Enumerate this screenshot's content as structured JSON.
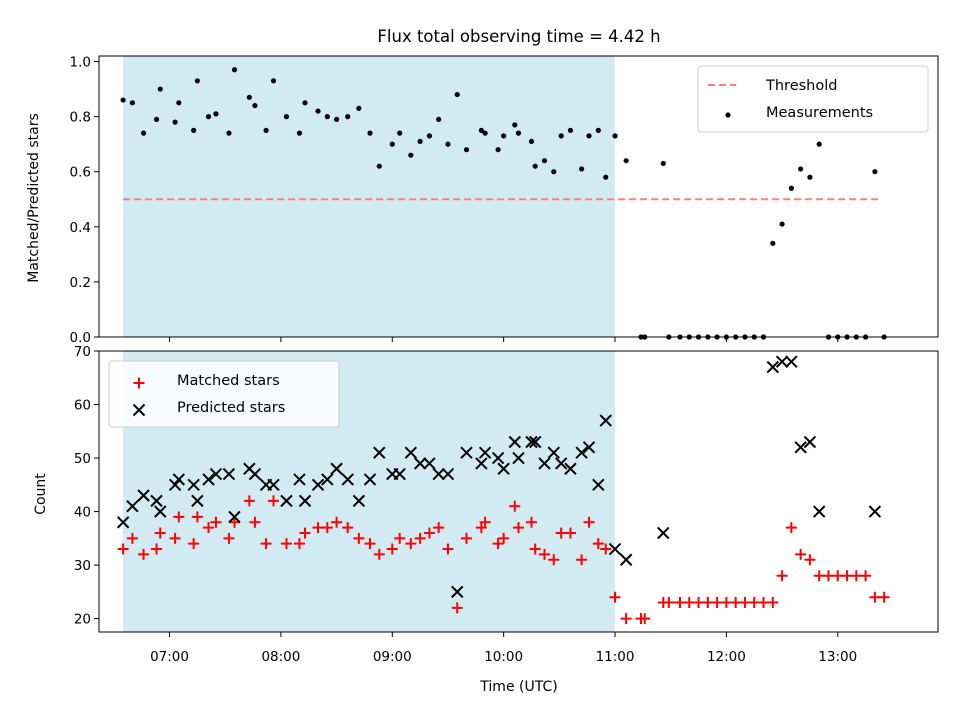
{
  "chart_data": [
    {
      "type": "scatter",
      "title": "Flux total observing time = 4.42 h",
      "xlabel": "",
      "ylabel": "Matched/Predicted stars",
      "xlim": [
        "06:22",
        "13:54"
      ],
      "ylim": [
        0.0,
        1.02
      ],
      "yticks": [
        "0.0",
        "0.2",
        "0.4",
        "0.6",
        "0.8",
        "1.0"
      ],
      "xticks": [
        "07:00",
        "08:00",
        "09:00",
        "10:00",
        "11:00",
        "12:00",
        "13:00"
      ],
      "x_tick_labels_visible": false,
      "shaded_region": {
        "start": "06:35",
        "end": "11:00",
        "color": "#add8e6"
      },
      "legend": {
        "placement": "upper right",
        "entries": [
          "Threshold",
          "Measurements"
        ]
      },
      "series": [
        {
          "name": "Threshold",
          "kind": "dashed-line",
          "color": "#ff7f7f",
          "points": [
            [
              "06:35",
              0.5
            ],
            [
              "13:22",
              0.5
            ]
          ]
        },
        {
          "name": "Measurements",
          "kind": "dot",
          "color": "#000000",
          "points": [
            [
              "06:35",
              0.86
            ],
            [
              "06:40",
              0.85
            ],
            [
              "06:46",
              0.74
            ],
            [
              "06:53",
              0.79
            ],
            [
              "06:55",
              0.9
            ],
            [
              "07:03",
              0.78
            ],
            [
              "07:05",
              0.85
            ],
            [
              "07:13",
              0.75
            ],
            [
              "07:15",
              0.93
            ],
            [
              "07:21",
              0.8
            ],
            [
              "07:25",
              0.81
            ],
            [
              "07:32",
              0.74
            ],
            [
              "07:35",
              0.97
            ],
            [
              "07:43",
              0.87
            ],
            [
              "07:46",
              0.84
            ],
            [
              "07:52",
              0.75
            ],
            [
              "07:56",
              0.93
            ],
            [
              "08:03",
              0.8
            ],
            [
              "08:10",
              0.74
            ],
            [
              "08:13",
              0.85
            ],
            [
              "08:20",
              0.82
            ],
            [
              "08:25",
              0.8
            ],
            [
              "08:30",
              0.79
            ],
            [
              "08:36",
              0.8
            ],
            [
              "08:42",
              0.83
            ],
            [
              "08:48",
              0.74
            ],
            [
              "08:53",
              0.62
            ],
            [
              "09:00",
              0.7
            ],
            [
              "09:04",
              0.74
            ],
            [
              "09:10",
              0.66
            ],
            [
              "09:15",
              0.71
            ],
            [
              "09:20",
              0.73
            ],
            [
              "09:25",
              0.79
            ],
            [
              "09:30",
              0.7
            ],
            [
              "09:35",
              0.88
            ],
            [
              "09:40",
              0.68
            ],
            [
              "09:48",
              0.75
            ],
            [
              "09:50",
              0.74
            ],
            [
              "09:57",
              0.68
            ],
            [
              "10:00",
              0.73
            ],
            [
              "10:06",
              0.77
            ],
            [
              "10:08",
              0.74
            ],
            [
              "10:15",
              0.71
            ],
            [
              "10:17",
              0.62
            ],
            [
              "10:22",
              0.64
            ],
            [
              "10:27",
              0.6
            ],
            [
              "10:31",
              0.73
            ],
            [
              "10:36",
              0.75
            ],
            [
              "10:42",
              0.61
            ],
            [
              "10:46",
              0.73
            ],
            [
              "10:51",
              0.75
            ],
            [
              "10:55",
              0.58
            ],
            [
              "11:00",
              0.73
            ],
            [
              "11:06",
              0.64
            ],
            [
              "11:14",
              0.0
            ],
            [
              "11:16",
              0.0
            ],
            [
              "11:26",
              0.63
            ],
            [
              "11:29",
              0.0
            ],
            [
              "11:35",
              0.0
            ],
            [
              "11:40",
              0.0
            ],
            [
              "11:45",
              0.0
            ],
            [
              "11:50",
              0.0
            ],
            [
              "11:55",
              0.0
            ],
            [
              "12:00",
              0.0
            ],
            [
              "12:05",
              0.0
            ],
            [
              "12:10",
              0.0
            ],
            [
              "12:15",
              0.0
            ],
            [
              "12:20",
              0.0
            ],
            [
              "12:25",
              0.34
            ],
            [
              "12:30",
              0.41
            ],
            [
              "12:35",
              0.54
            ],
            [
              "12:40",
              0.61
            ],
            [
              "12:45",
              0.58
            ],
            [
              "12:50",
              0.7
            ],
            [
              "12:55",
              0.0
            ],
            [
              "13:00",
              0.0
            ],
            [
              "13:05",
              0.0
            ],
            [
              "13:10",
              0.0
            ],
            [
              "13:15",
              0.0
            ],
            [
              "13:20",
              0.6
            ],
            [
              "13:25",
              0.0
            ]
          ]
        }
      ]
    },
    {
      "type": "scatter",
      "title": "",
      "xlabel": "Time (UTC)",
      "ylabel": "Count",
      "xlim": [
        "06:22",
        "13:54"
      ],
      "ylim": [
        17.5,
        70
      ],
      "yticks": [
        "20",
        "30",
        "40",
        "50",
        "60",
        "70"
      ],
      "xticks": [
        "07:00",
        "08:00",
        "09:00",
        "10:00",
        "11:00",
        "12:00",
        "13:00"
      ],
      "shaded_region": {
        "start": "06:35",
        "end": "11:00",
        "color": "#add8e6"
      },
      "legend": {
        "placement": "upper left",
        "entries": [
          "Matched stars",
          "Predicted stars"
        ]
      },
      "series": [
        {
          "name": "Matched stars",
          "kind": "plus",
          "color": "#ff0000",
          "points": [
            [
              "06:35",
              33
            ],
            [
              "06:40",
              35
            ],
            [
              "06:46",
              32
            ],
            [
              "06:53",
              33
            ],
            [
              "06:55",
              36
            ],
            [
              "07:03",
              35
            ],
            [
              "07:05",
              39
            ],
            [
              "07:13",
              34
            ],
            [
              "07:15",
              39
            ],
            [
              "07:21",
              37
            ],
            [
              "07:25",
              38
            ],
            [
              "07:32",
              35
            ],
            [
              "07:35",
              38
            ],
            [
              "07:43",
              42
            ],
            [
              "07:46",
              38
            ],
            [
              "07:52",
              34
            ],
            [
              "07:56",
              42
            ],
            [
              "08:03",
              34
            ],
            [
              "08:10",
              34
            ],
            [
              "08:13",
              36
            ],
            [
              "08:20",
              37
            ],
            [
              "08:25",
              37
            ],
            [
              "08:30",
              38
            ],
            [
              "08:36",
              37
            ],
            [
              "08:42",
              35
            ],
            [
              "08:48",
              34
            ],
            [
              "08:53",
              32
            ],
            [
              "09:00",
              33
            ],
            [
              "09:04",
              35
            ],
            [
              "09:10",
              34
            ],
            [
              "09:15",
              35
            ],
            [
              "09:20",
              36
            ],
            [
              "09:25",
              37
            ],
            [
              "09:30",
              33
            ],
            [
              "09:35",
              22
            ],
            [
              "09:40",
              35
            ],
            [
              "09:48",
              37
            ],
            [
              "09:50",
              38
            ],
            [
              "09:57",
              34
            ],
            [
              "10:00",
              35
            ],
            [
              "10:06",
              41
            ],
            [
              "10:08",
              37
            ],
            [
              "10:15",
              38
            ],
            [
              "10:17",
              33
            ],
            [
              "10:22",
              32
            ],
            [
              "10:27",
              31
            ],
            [
              "10:31",
              36
            ],
            [
              "10:36",
              36
            ],
            [
              "10:42",
              31
            ],
            [
              "10:46",
              38
            ],
            [
              "10:51",
              34
            ],
            [
              "10:55",
              33
            ],
            [
              "11:00",
              24
            ],
            [
              "11:06",
              20
            ],
            [
              "11:14",
              20
            ],
            [
              "11:16",
              20
            ],
            [
              "11:26",
              23
            ],
            [
              "11:29",
              23
            ],
            [
              "11:35",
              23
            ],
            [
              "11:40",
              23
            ],
            [
              "11:45",
              23
            ],
            [
              "11:50",
              23
            ],
            [
              "11:55",
              23
            ],
            [
              "12:00",
              23
            ],
            [
              "12:05",
              23
            ],
            [
              "12:10",
              23
            ],
            [
              "12:15",
              23
            ],
            [
              "12:20",
              23
            ],
            [
              "12:25",
              23
            ],
            [
              "12:30",
              28
            ],
            [
              "12:35",
              37
            ],
            [
              "12:40",
              32
            ],
            [
              "12:45",
              31
            ],
            [
              "12:50",
              28
            ],
            [
              "12:55",
              28
            ],
            [
              "13:00",
              28
            ],
            [
              "13:05",
              28
            ],
            [
              "13:10",
              28
            ],
            [
              "13:15",
              28
            ],
            [
              "13:20",
              24
            ],
            [
              "13:25",
              24
            ]
          ]
        },
        {
          "name": "Predicted stars",
          "kind": "cross",
          "color": "#000000",
          "points": [
            [
              "06:35",
              38
            ],
            [
              "06:40",
              41
            ],
            [
              "06:46",
              43
            ],
            [
              "06:53",
              42
            ],
            [
              "06:55",
              40
            ],
            [
              "07:03",
              45
            ],
            [
              "07:05",
              46
            ],
            [
              "07:13",
              45
            ],
            [
              "07:15",
              42
            ],
            [
              "07:21",
              46
            ],
            [
              "07:25",
              47
            ],
            [
              "07:32",
              47
            ],
            [
              "07:35",
              39
            ],
            [
              "07:43",
              48
            ],
            [
              "07:46",
              47
            ],
            [
              "07:52",
              45
            ],
            [
              "07:56",
              45
            ],
            [
              "08:03",
              42
            ],
            [
              "08:10",
              46
            ],
            [
              "08:13",
              42
            ],
            [
              "08:20",
              45
            ],
            [
              "08:25",
              46
            ],
            [
              "08:30",
              48
            ],
            [
              "08:36",
              46
            ],
            [
              "08:42",
              42
            ],
            [
              "08:48",
              46
            ],
            [
              "08:53",
              51
            ],
            [
              "09:00",
              47
            ],
            [
              "09:04",
              47
            ],
            [
              "09:10",
              51
            ],
            [
              "09:15",
              49
            ],
            [
              "09:20",
              49
            ],
            [
              "09:25",
              47
            ],
            [
              "09:30",
              47
            ],
            [
              "09:35",
              25
            ],
            [
              "09:40",
              51
            ],
            [
              "09:48",
              49
            ],
            [
              "09:50",
              51
            ],
            [
              "09:57",
              50
            ],
            [
              "10:00",
              48
            ],
            [
              "10:06",
              53
            ],
            [
              "10:08",
              50
            ],
            [
              "10:15",
              53
            ],
            [
              "10:17",
              53
            ],
            [
              "10:22",
              49
            ],
            [
              "10:27",
              51
            ],
            [
              "10:31",
              49
            ],
            [
              "10:36",
              48
            ],
            [
              "10:42",
              51
            ],
            [
              "10:46",
              52
            ],
            [
              "10:51",
              45
            ],
            [
              "10:55",
              57
            ],
            [
              "11:00",
              33
            ],
            [
              "11:06",
              31
            ],
            [
              "11:26",
              36
            ],
            [
              "12:25",
              67
            ],
            [
              "12:30",
              68
            ],
            [
              "12:35",
              68
            ],
            [
              "12:40",
              52
            ],
            [
              "12:45",
              53
            ],
            [
              "12:50",
              40
            ],
            [
              "13:20",
              40
            ]
          ]
        }
      ]
    }
  ]
}
